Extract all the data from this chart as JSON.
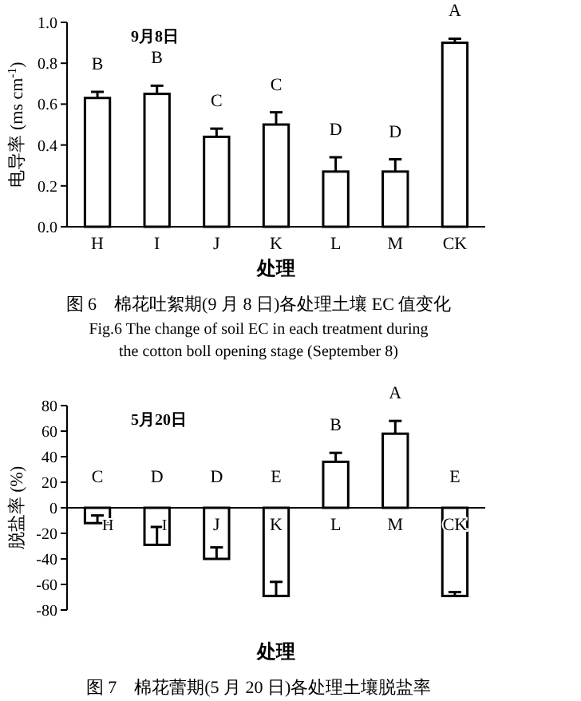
{
  "chart_data": [
    {
      "type": "bar",
      "title": "图 6　棉花吐絮期(9 月 8 日)各处理土壤 EC 值变化",
      "subtitle": "Fig.6 The change of soil EC in each treatment during the cotton boll opening stage (September 8)",
      "xlabel": "处理",
      "ylabel": "电导率 (ms cm$^{-1}$)",
      "categories": [
        "H",
        "I",
        "J",
        "K",
        "L",
        "M",
        "CK"
      ],
      "values": [
        0.63,
        0.65,
        0.44,
        0.5,
        0.27,
        0.27,
        0.9
      ],
      "errors": [
        [
          0.63,
          0.66
        ],
        [
          0.65,
          0.69
        ],
        [
          0.44,
          0.48
        ],
        [
          0.5,
          0.56
        ],
        [
          0.27,
          0.34
        ],
        [
          0.27,
          0.33
        ],
        [
          0.9,
          0.92
        ]
      ],
      "color": "#ffffff",
      "ylim": [
        0,
        1
      ],
      "yticks": [
        {
          "value": 0,
          "label": "0.0"
        },
        0.2,
        0.4,
        0.6,
        0.8,
        {
          "value": 1,
          "label": "1.0"
        }
      ],
      "grid": false,
      "value_labels": [
        "B",
        "B",
        "C",
        "C",
        "D",
        "D",
        "A"
      ],
      "annotations": [
        "9月8日"
      ]
    },
    {
      "type": "bar",
      "title": "图 7　棉花蕾期(5 月 20 日)各处理土壤脱盐率",
      "xlabel": "处理",
      "ylabel": "脱盐率 (%)",
      "categories": [
        "H",
        "I",
        "J",
        "K",
        "L",
        "M",
        "CK"
      ],
      "values": [
        -12,
        -29,
        -40,
        -69,
        36,
        58,
        -69
      ],
      "errors": [
        [
          -12,
          -6
        ],
        [
          -29,
          -15
        ],
        [
          -40,
          -31
        ],
        [
          -69,
          -58
        ],
        [
          36,
          43
        ],
        [
          58,
          68
        ],
        [
          -69,
          -66
        ]
      ],
      "color": "#ffffff",
      "ylim": [
        -80,
        80
      ],
      "yticks": [
        -80,
        -60,
        -40,
        -20,
        0,
        20,
        40,
        60,
        80
      ],
      "grid": false,
      "value_labels": [
        "C",
        "D",
        "D",
        "E",
        "B",
        "A",
        "E"
      ],
      "annotations": [
        "5月20日"
      ]
    }
  ]
}
